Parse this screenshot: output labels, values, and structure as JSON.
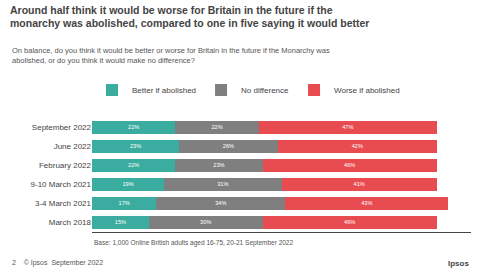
{
  "chart_data": {
    "type": "bar",
    "orientation": "horizontal",
    "stacked": true,
    "title": "Around half think it would be worse for Britain in the future if the\nmonarchy was abolished, compared to one in five saying it would better",
    "subtitle": "On balance, do you think it would be better or worse for Britain in the future if the Monarchy was\nabolished, or do you think it would make no difference?",
    "footnote": "Base: 1,000 Online British adults aged 16-75, 20-21 September 2022",
    "annotations": [
      "2    © Ipsos  September 2022",
      "Ipsos"
    ],
    "categories": [
      "September 2022",
      "June 2022",
      "February 2022",
      "9-10 March 2021",
      "3-4 March 2021",
      "March 2018"
    ],
    "series": [
      {
        "name": "Better if abolished",
        "color": "#3aada0",
        "values": [
          22,
          23,
          22,
          19,
          17,
          15
        ],
        "value_labels": [
          "22%",
          "23%",
          "22%",
          "19%",
          "17%",
          "15%"
        ]
      },
      {
        "name": "No difference",
        "color": "#7f7f7f",
        "values": [
          22,
          26,
          23,
          31,
          34,
          30
        ],
        "value_labels": [
          "22%",
          "26%",
          "23%",
          "31%",
          "34%",
          "30%"
        ]
      },
      {
        "name": "Worse if abolished",
        "color": "#e84b50",
        "values": [
          47,
          42,
          46,
          41,
          43,
          46
        ],
        "value_labels": [
          "47%",
          "42%",
          "46%",
          "41%",
          "43%",
          "46%"
        ]
      }
    ],
    "xlim": [
      0,
      100
    ],
    "xticks": [],
    "grid": false,
    "legend": "top",
    "data_labels": true,
    "tick_labels": "y"
  }
}
